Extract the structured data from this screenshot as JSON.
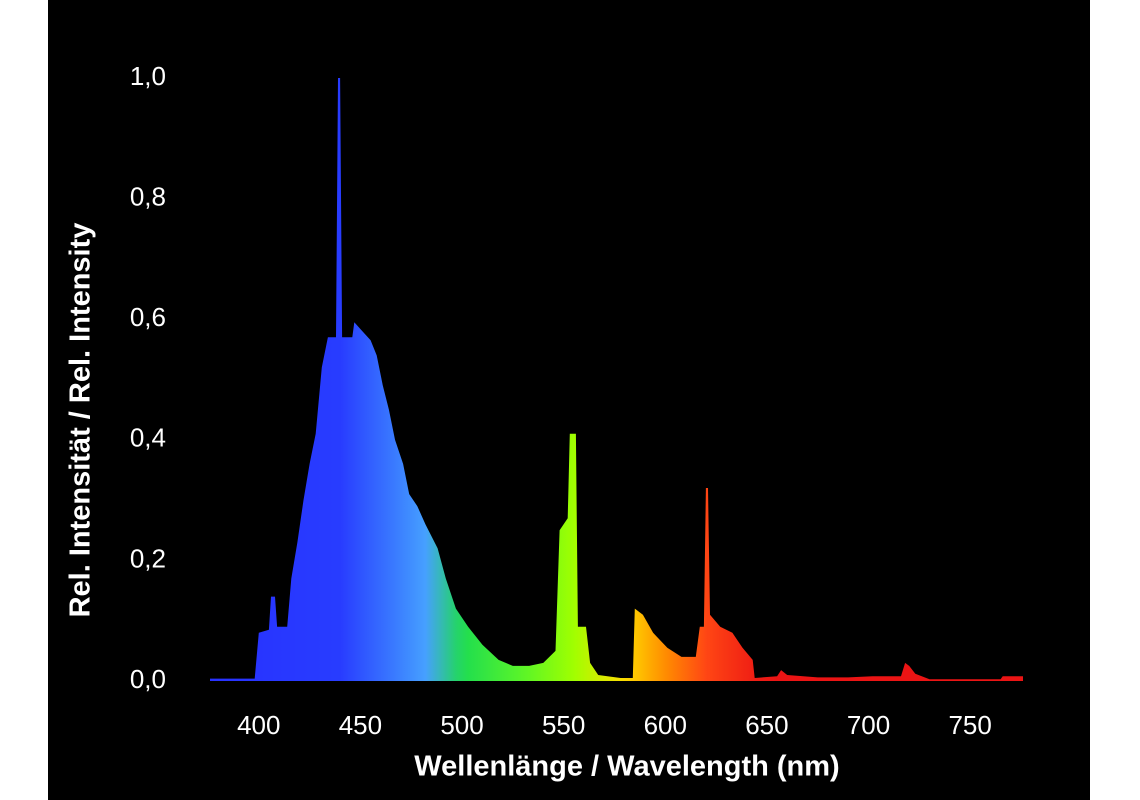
{
  "chart_data": {
    "type": "area",
    "x_label": "Wellenlänge / Wavelength (nm)",
    "y_label": "Rel. Intensität / Rel. Intensity",
    "x": [
      376,
      398,
      400,
      405,
      406,
      408,
      409,
      414,
      416,
      419,
      422,
      425,
      428,
      431,
      434,
      438,
      439,
      440,
      441,
      446,
      447,
      451,
      455,
      458,
      461,
      464,
      467,
      471,
      474,
      478,
      482,
      488,
      492,
      497,
      503,
      510,
      518,
      525,
      533,
      540,
      546,
      548,
      552,
      553,
      556,
      557,
      561,
      563,
      567,
      578,
      584,
      585,
      589,
      594,
      601,
      608,
      615,
      617,
      619,
      620,
      621,
      622,
      627,
      633,
      638,
      643,
      644,
      655,
      657,
      660,
      675,
      690,
      702,
      716,
      718,
      720,
      723,
      730,
      765,
      766,
      776
    ],
    "values": [
      0.004,
      0.004,
      0.08,
      0.085,
      0.14,
      0.14,
      0.09,
      0.09,
      0.17,
      0.23,
      0.3,
      0.36,
      0.41,
      0.52,
      0.57,
      0.57,
      1.0,
      1.0,
      0.57,
      0.57,
      0.595,
      0.58,
      0.565,
      0.54,
      0.49,
      0.45,
      0.4,
      0.36,
      0.31,
      0.29,
      0.26,
      0.22,
      0.17,
      0.12,
      0.09,
      0.06,
      0.035,
      0.025,
      0.025,
      0.03,
      0.05,
      0.25,
      0.27,
      0.41,
      0.41,
      0.09,
      0.09,
      0.03,
      0.01,
      0.005,
      0.005,
      0.12,
      0.11,
      0.08,
      0.055,
      0.04,
      0.04,
      0.09,
      0.09,
      0.32,
      0.32,
      0.11,
      0.09,
      0.08,
      0.055,
      0.035,
      0.005,
      0.008,
      0.018,
      0.01,
      0.006,
      0.006,
      0.008,
      0.008,
      0.03,
      0.025,
      0.012,
      0.003,
      0.003,
      0.008,
      0.008
    ],
    "xlim": [
      376,
      776
    ],
    "xticks": [
      400,
      450,
      500,
      550,
      600,
      650,
      700,
      750
    ],
    "ylim": [
      0,
      1
    ],
    "yticks": [
      {
        "value": 0,
        "label": "0,0"
      },
      {
        "value": 0.2,
        "label": "0,2"
      },
      {
        "value": 0.4,
        "label": "0,4"
      },
      {
        "value": 0.6,
        "label": "0,6"
      },
      {
        "value": 0.8,
        "label": "0,8"
      },
      {
        "value": 1,
        "label": "1,0"
      }
    ],
    "grid": false,
    "color": "spectral"
  }
}
